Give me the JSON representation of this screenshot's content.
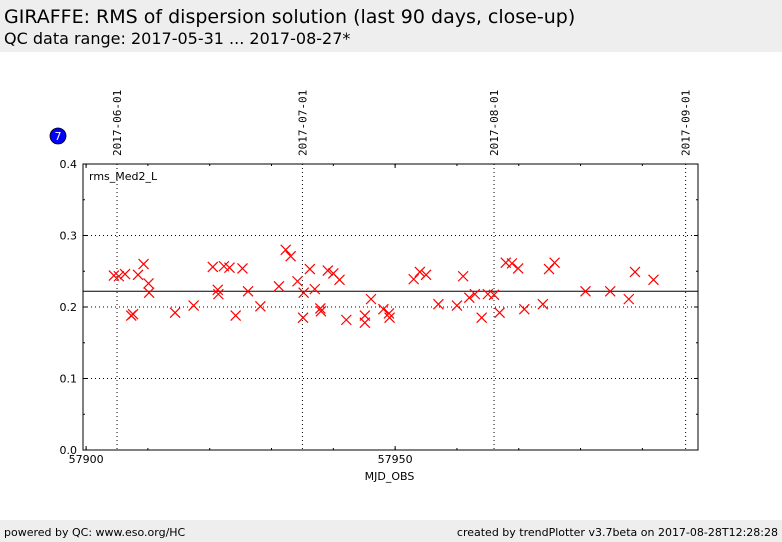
{
  "header": {
    "title": "GIRAFFE: RMS of dispersion solution (last 90 days, close-up)",
    "subtitle": "QC data range: 2017-05-31 ... 2017-08-27*"
  },
  "badge": {
    "text": "7",
    "color": "#0000ff"
  },
  "footer": {
    "left": "powered by QC: www.eso.org/HC",
    "right": "created by trendPlotter v3.7beta on 2017-08-28T12:28:28"
  },
  "chart_data": {
    "type": "scatter",
    "title": "",
    "xlabel": "MJD_OBS",
    "ylabel": "",
    "xlim": [
      57899.5,
      57999.0
    ],
    "ylim": [
      0.0,
      0.4
    ],
    "grid": true,
    "x_ticks": [
      57900,
      57950
    ],
    "x_tick_labels": [
      "57900",
      "57950"
    ],
    "y_ticks": [
      0.0,
      0.1,
      0.2,
      0.3,
      0.4
    ],
    "y_tick_labels": [
      "0.0",
      "0.1",
      "0.2",
      "0.3",
      "0.4"
    ],
    "date_ticks": [
      {
        "x": 57905.0,
        "label": "2017-06-01"
      },
      {
        "x": 57935.0,
        "label": "2017-07-01"
      },
      {
        "x": 57966.0,
        "label": "2017-08-01"
      },
      {
        "x": 57997.0,
        "label": "2017-09-01"
      }
    ],
    "legend": "rms_Med2_L",
    "legend_position": "top-left",
    "reference_line": 0.222,
    "marker": "x",
    "marker_color": "#ff0000",
    "points": [
      {
        "x": 57904.5,
        "y": 0.244
      },
      {
        "x": 57905.3,
        "y": 0.243
      },
      {
        "x": 57906.3,
        "y": 0.246
      },
      {
        "x": 57907.3,
        "y": 0.188
      },
      {
        "x": 57907.6,
        "y": 0.19
      },
      {
        "x": 57908.4,
        "y": 0.245
      },
      {
        "x": 57909.3,
        "y": 0.26
      },
      {
        "x": 57910.1,
        "y": 0.233
      },
      {
        "x": 57910.2,
        "y": 0.22
      },
      {
        "x": 57914.4,
        "y": 0.192
      },
      {
        "x": 57917.4,
        "y": 0.202
      },
      {
        "x": 57920.5,
        "y": 0.256
      },
      {
        "x": 57921.3,
        "y": 0.224
      },
      {
        "x": 57921.4,
        "y": 0.218
      },
      {
        "x": 57922.3,
        "y": 0.257
      },
      {
        "x": 57923.2,
        "y": 0.255
      },
      {
        "x": 57924.2,
        "y": 0.188
      },
      {
        "x": 57925.3,
        "y": 0.254
      },
      {
        "x": 57926.2,
        "y": 0.222
      },
      {
        "x": 57928.2,
        "y": 0.201
      },
      {
        "x": 57931.2,
        "y": 0.229
      },
      {
        "x": 57932.3,
        "y": 0.28
      },
      {
        "x": 57933.1,
        "y": 0.271
      },
      {
        "x": 57934.2,
        "y": 0.236
      },
      {
        "x": 57935.1,
        "y": 0.185
      },
      {
        "x": 57935.2,
        "y": 0.22
      },
      {
        "x": 57936.2,
        "y": 0.253
      },
      {
        "x": 57937.0,
        "y": 0.225
      },
      {
        "x": 57937.9,
        "y": 0.198
      },
      {
        "x": 57938.0,
        "y": 0.194
      },
      {
        "x": 57939.1,
        "y": 0.251
      },
      {
        "x": 57940.0,
        "y": 0.247
      },
      {
        "x": 57941.0,
        "y": 0.238
      },
      {
        "x": 57942.1,
        "y": 0.182
      },
      {
        "x": 57945.1,
        "y": 0.188
      },
      {
        "x": 57945.1,
        "y": 0.178
      },
      {
        "x": 57946.1,
        "y": 0.211
      },
      {
        "x": 57948.1,
        "y": 0.197
      },
      {
        "x": 57949.0,
        "y": 0.191
      },
      {
        "x": 57949.1,
        "y": 0.185
      },
      {
        "x": 57953.0,
        "y": 0.239
      },
      {
        "x": 57954.0,
        "y": 0.249
      },
      {
        "x": 57955.0,
        "y": 0.245
      },
      {
        "x": 57957.0,
        "y": 0.204
      },
      {
        "x": 57960.0,
        "y": 0.202
      },
      {
        "x": 57961.0,
        "y": 0.243
      },
      {
        "x": 57962.0,
        "y": 0.213
      },
      {
        "x": 57962.9,
        "y": 0.218
      },
      {
        "x": 57964.0,
        "y": 0.185
      },
      {
        "x": 57965.0,
        "y": 0.218
      },
      {
        "x": 57966.0,
        "y": 0.217
      },
      {
        "x": 57966.9,
        "y": 0.192
      },
      {
        "x": 57967.9,
        "y": 0.262
      },
      {
        "x": 57968.9,
        "y": 0.261
      },
      {
        "x": 57969.9,
        "y": 0.254
      },
      {
        "x": 57970.9,
        "y": 0.197
      },
      {
        "x": 57973.9,
        "y": 0.204
      },
      {
        "x": 57974.9,
        "y": 0.253
      },
      {
        "x": 57975.8,
        "y": 0.262
      },
      {
        "x": 57980.8,
        "y": 0.222
      },
      {
        "x": 57984.8,
        "y": 0.222
      },
      {
        "x": 57987.8,
        "y": 0.211
      },
      {
        "x": 57988.8,
        "y": 0.249
      },
      {
        "x": 57991.8,
        "y": 0.238
      }
    ]
  }
}
